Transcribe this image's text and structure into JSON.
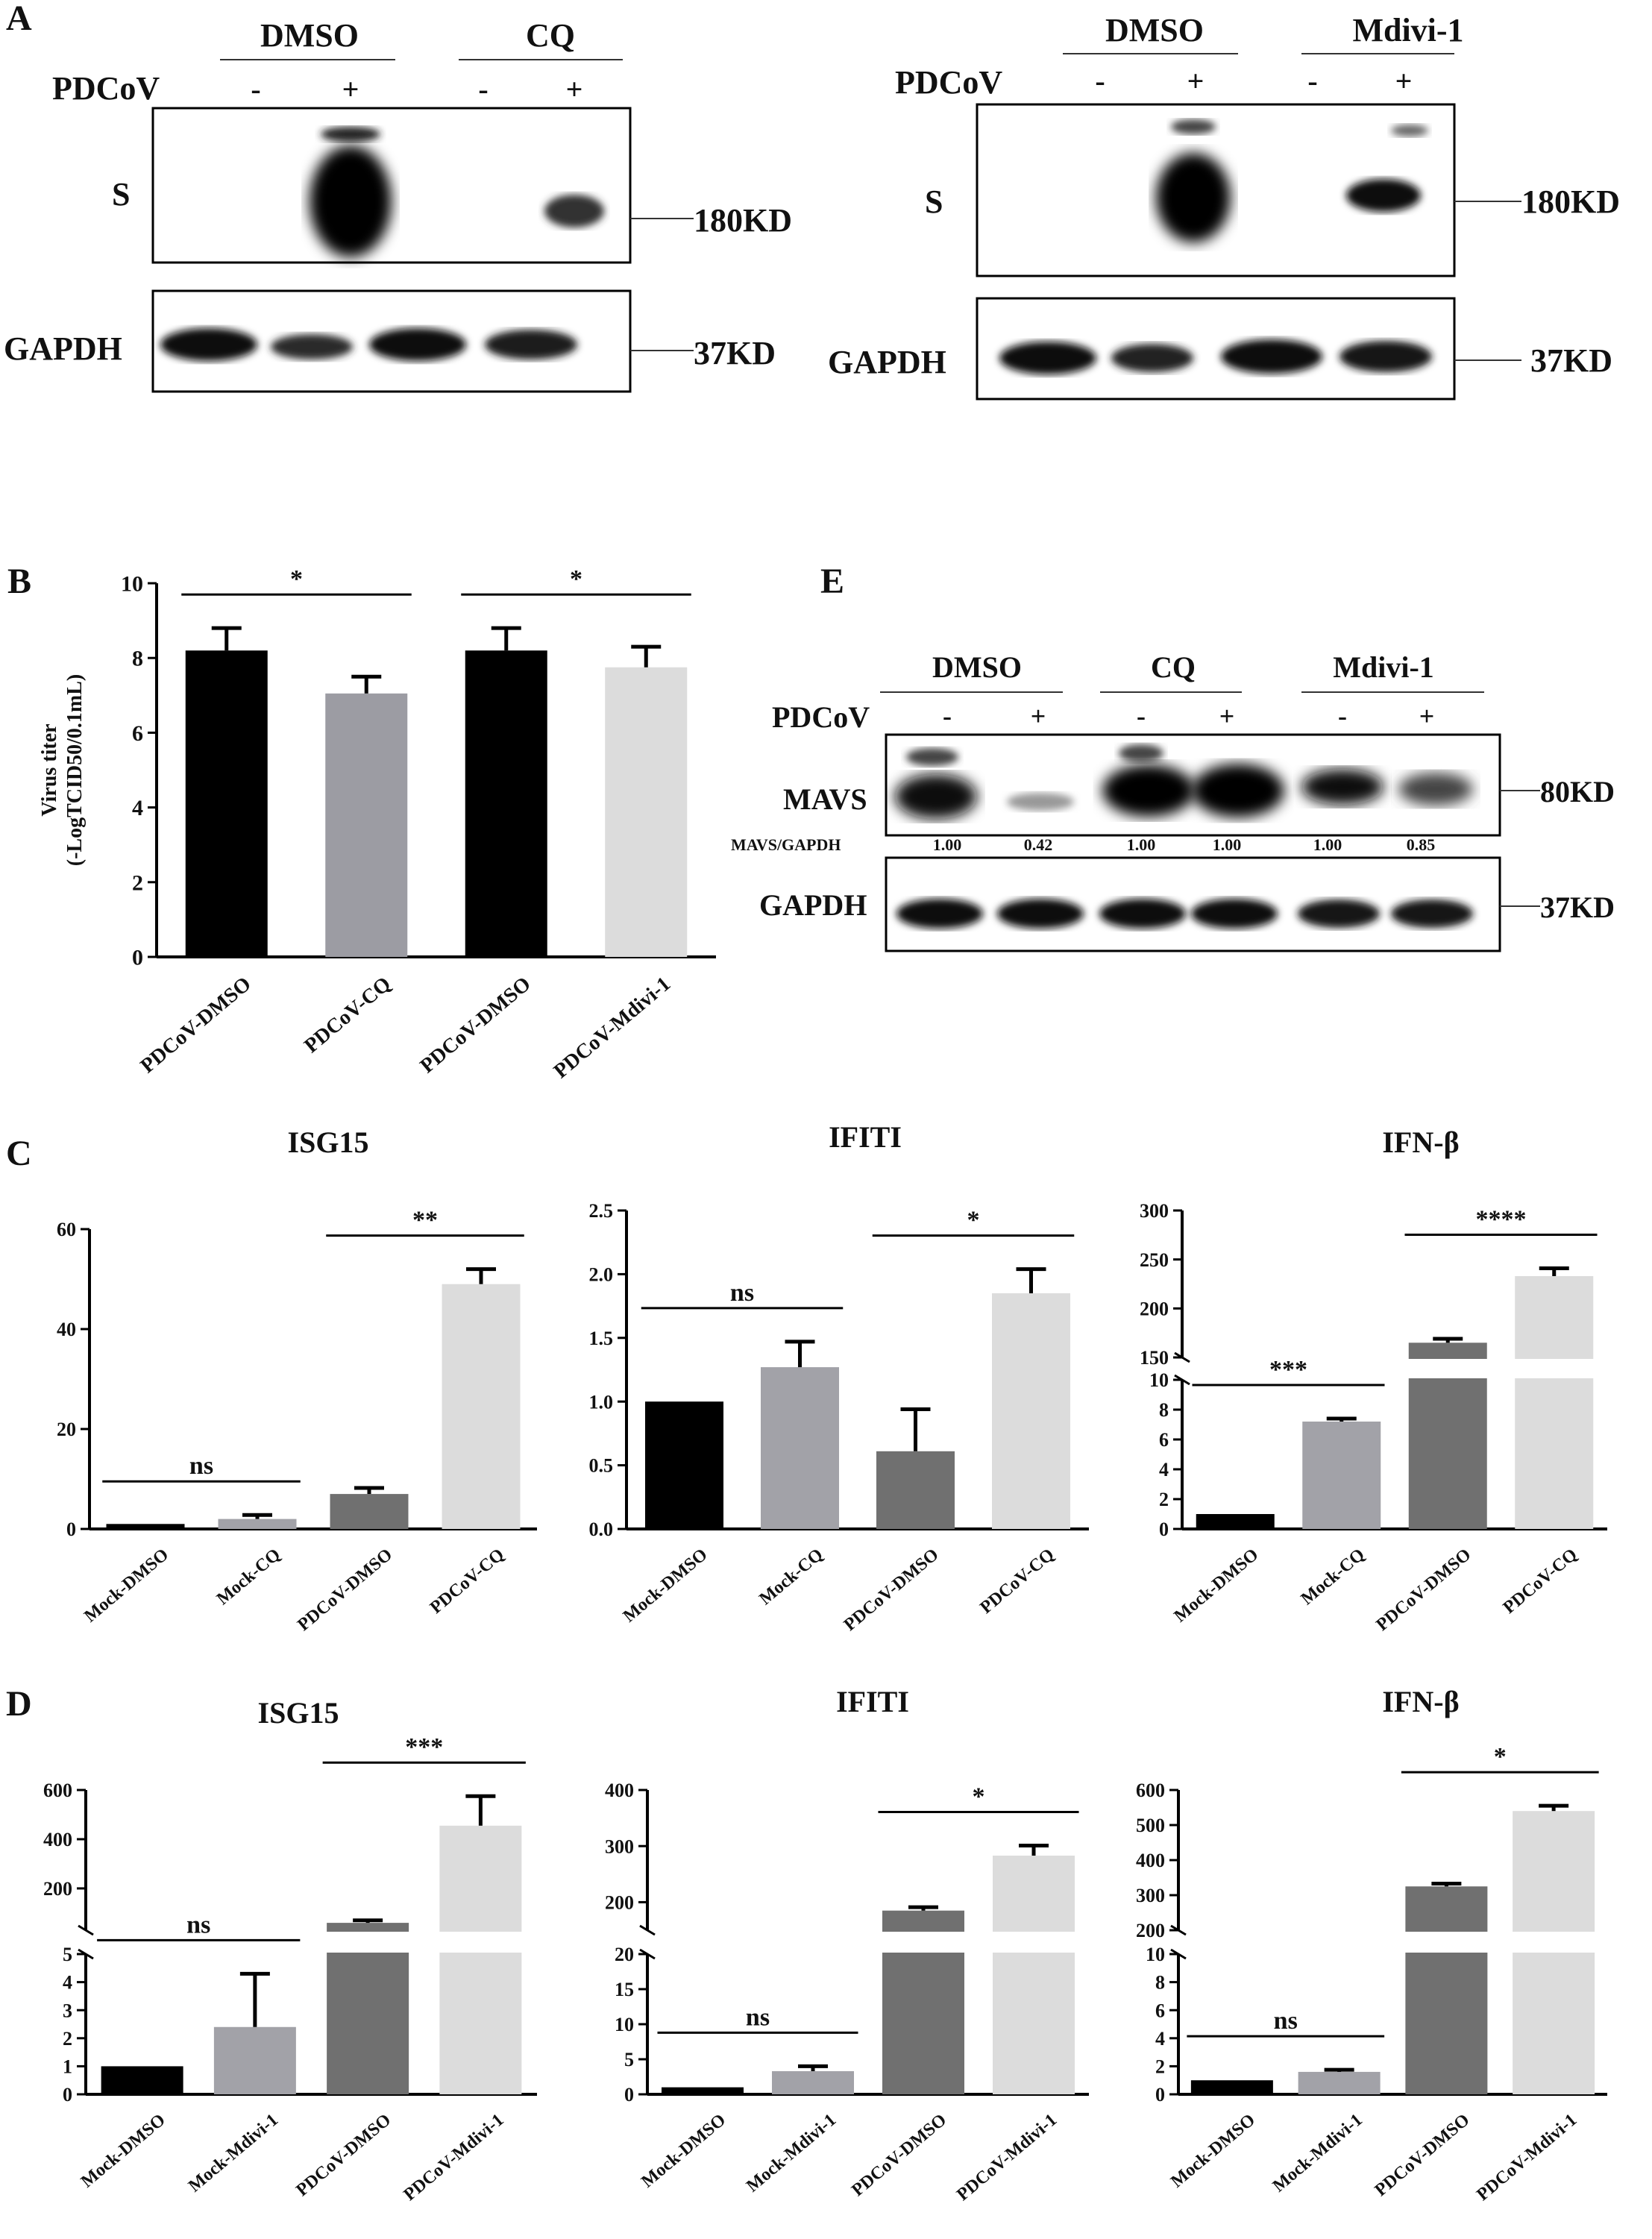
{
  "panels": {
    "A": "A",
    "B": "B",
    "C": "C",
    "D": "D",
    "E": "E"
  },
  "blots": {
    "A_left": {
      "groups": [
        "DMSO",
        "CQ"
      ],
      "infection_label": "PDCoV",
      "signs": [
        "-",
        "+",
        "-",
        "+"
      ],
      "rows": [
        "S",
        "GAPDH"
      ],
      "sizes": [
        "180KD",
        "37KD"
      ],
      "s_band_intensity": [
        0,
        1.0,
        0,
        0.55
      ],
      "gapdh_band_intensity": [
        0.9,
        0.65,
        0.9,
        0.8
      ]
    },
    "A_right": {
      "groups": [
        "DMSO",
        "Mdivi-1"
      ],
      "infection_label": "PDCoV",
      "signs": [
        "-",
        "+",
        "-",
        "+"
      ],
      "rows": [
        "S",
        "GAPDH"
      ],
      "sizes": [
        "180KD",
        "37KD"
      ],
      "s_band_intensity": [
        0,
        1.0,
        0,
        0.7
      ],
      "gapdh_band_intensity": [
        0.9,
        0.8,
        0.9,
        0.85
      ]
    },
    "E": {
      "groups": [
        "DMSO",
        "CQ",
        "Mdivi-1"
      ],
      "infection_label": "PDCoV",
      "signs": [
        "-",
        "+",
        "-",
        "+",
        "-",
        "+"
      ],
      "rows": [
        "MAVS",
        "GAPDH"
      ],
      "sizes": [
        "80KD",
        "37KD"
      ],
      "ratio_label": "MAVS/GAPDH",
      "ratios": [
        "1.00",
        "0.42",
        "1.00",
        "1.00",
        "1.00",
        "0.85"
      ],
      "mavs_band_intensity": [
        0.85,
        0.25,
        0.95,
        0.95,
        0.85,
        0.6
      ],
      "gapdh_band_intensity": [
        0.85,
        0.85,
        0.85,
        0.85,
        0.85,
        0.85
      ]
    }
  },
  "chart_data": [
    {
      "id": "B",
      "type": "bar",
      "ylabel_line1": "Virus titer",
      "ylabel_line2": "(-LogTCID50/0.1mL)",
      "categories": [
        "PDCoV-DMSO",
        "PDCoV-CQ",
        "PDCoV-DMSO",
        "PDCoV-Mdivi-1"
      ],
      "values": [
        8.2,
        7.05,
        8.2,
        7.75
      ],
      "errors": [
        0.6,
        0.45,
        0.6,
        0.55
      ],
      "colors": [
        "#000000",
        "#9c9ca3",
        "#000000",
        "#dcdcdc"
      ],
      "ylim": [
        0,
        10
      ],
      "yticks": [
        "0",
        "2",
        "4",
        "6",
        "8",
        "10"
      ],
      "significance": [
        {
          "from": 0,
          "to": 1,
          "label": "*"
        },
        {
          "from": 2,
          "to": 3,
          "label": "*"
        }
      ]
    },
    {
      "id": "C1",
      "type": "bar",
      "title": "ISG15",
      "categories": [
        "Mock-DMSO",
        "Mock-CQ",
        "PDCoV-DMSO",
        "PDCoV-CQ"
      ],
      "values": [
        1.0,
        2.0,
        7.0,
        49
      ],
      "errors": [
        0,
        0.8,
        1.2,
        3
      ],
      "colors": [
        "#000000",
        "#a2a2a8",
        "#707070",
        "#dcdcdc"
      ],
      "ylim": [
        0,
        60
      ],
      "yticks": [
        "0",
        "20",
        "40",
        "60"
      ],
      "significance": [
        {
          "from": 0,
          "to": 1,
          "label": "ns"
        },
        {
          "from": 2,
          "to": 3,
          "label": "**"
        }
      ]
    },
    {
      "id": "C2",
      "type": "bar",
      "title": "IFITI",
      "categories": [
        "Mock-DMSO",
        "Mock-CQ",
        "PDCoV-DMSO",
        "PDCoV-CQ"
      ],
      "values": [
        1.0,
        1.27,
        0.61,
        1.85
      ],
      "errors": [
        0,
        0.2,
        0.33,
        0.19
      ],
      "colors": [
        "#000000",
        "#a2a2a8",
        "#707070",
        "#dcdcdc"
      ],
      "ylim": [
        0,
        2.5
      ],
      "yticks": [
        "0.0",
        "0.5",
        "1.0",
        "1.5",
        "2.0",
        "2.5"
      ],
      "significance": [
        {
          "from": 0,
          "to": 1,
          "label": "ns"
        },
        {
          "from": 2,
          "to": 3,
          "label": "*"
        }
      ]
    },
    {
      "id": "C3",
      "type": "bar",
      "title": "IFN-β",
      "broken_axis": true,
      "categories": [
        "Mock-DMSO",
        "Mock-CQ",
        "PDCoV-DMSO",
        "PDCoV-CQ"
      ],
      "values": [
        1.0,
        7.2,
        165,
        233
      ],
      "errors": [
        0,
        0.2,
        4,
        8
      ],
      "colors": [
        "#000000",
        "#a2a2a8",
        "#707070",
        "#dcdcdc"
      ],
      "ylim_low": [
        0,
        10
      ],
      "ylim_high": [
        150,
        300
      ],
      "yticks_low": [
        "0",
        "2",
        "4",
        "6",
        "8",
        "10"
      ],
      "yticks_high": [
        "150",
        "200",
        "250",
        "300"
      ],
      "significance": [
        {
          "from": 0,
          "to": 1,
          "label": "***"
        },
        {
          "from": 2,
          "to": 3,
          "label": "****"
        }
      ]
    },
    {
      "id": "D1",
      "type": "bar",
      "title": "ISG15",
      "broken_axis": true,
      "categories": [
        "Mock-DMSO",
        "Mock-Mdivi-1",
        "PDCoV-DMSO",
        "PDCoV-Mdivi-1"
      ],
      "values": [
        1.0,
        2.4,
        60,
        455
      ],
      "errors": [
        0,
        1.9,
        10,
        120
      ],
      "colors": [
        "#000000",
        "#a2a2a8",
        "#707070",
        "#dcdcdc"
      ],
      "ylim_low": [
        0,
        5
      ],
      "ylim_high": [
        30,
        600
      ],
      "yticks_low": [
        "0",
        "1",
        "2",
        "3",
        "4",
        "5"
      ],
      "yticks_high": [
        "200",
        "400",
        "600"
      ],
      "significance": [
        {
          "from": 0,
          "to": 1,
          "label": "ns"
        },
        {
          "from": 2,
          "to": 3,
          "label": "***"
        }
      ]
    },
    {
      "id": "D2",
      "type": "bar",
      "title": "IFITI",
      "broken_axis": true,
      "categories": [
        "Mock-DMSO",
        "Mock-Mdivi-1",
        "PDCoV-DMSO",
        "PDCoV-Mdivi-1"
      ],
      "values": [
        1.0,
        3.3,
        185,
        283
      ],
      "errors": [
        0,
        0.7,
        6,
        18
      ],
      "colors": [
        "#000000",
        "#a2a2a8",
        "#707070",
        "#dcdcdc"
      ],
      "ylim_low": [
        0,
        20
      ],
      "ylim_high": [
        150,
        400
      ],
      "yticks_low": [
        "0",
        "5",
        "10",
        "15",
        "20"
      ],
      "yticks_high": [
        "200",
        "300",
        "400"
      ],
      "significance": [
        {
          "from": 0,
          "to": 1,
          "label": "ns"
        },
        {
          "from": 2,
          "to": 3,
          "label": "*"
        }
      ]
    },
    {
      "id": "D3",
      "type": "bar",
      "title": "IFN-β",
      "broken_axis": true,
      "categories": [
        "Mock-DMSO",
        "Mock-Mdivi-1",
        "PDCoV-DMSO",
        "PDCoV-Mdivi-1"
      ],
      "values": [
        1.0,
        1.6,
        325,
        540
      ],
      "errors": [
        0,
        0.15,
        8,
        15
      ],
      "colors": [
        "#000000",
        "#a2a2a8",
        "#707070",
        "#dcdcdc"
      ],
      "ylim_low": [
        0,
        10
      ],
      "ylim_high": [
        200,
        600
      ],
      "yticks_low": [
        "0",
        "2",
        "4",
        "6",
        "8",
        "10"
      ],
      "yticks_high": [
        "200",
        "300",
        "400",
        "500",
        "600"
      ],
      "significance": [
        {
          "from": 0,
          "to": 1,
          "label": "ns"
        },
        {
          "from": 2,
          "to": 3,
          "label": "*"
        }
      ]
    }
  ]
}
